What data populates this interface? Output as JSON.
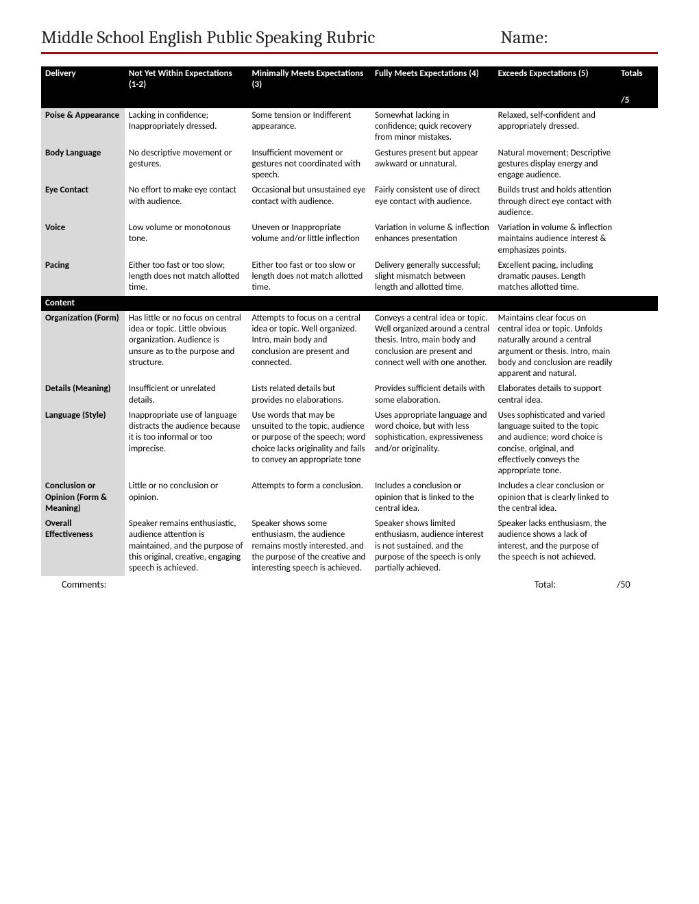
{
  "header": {
    "title": "Middle School English Public Speaking Rubric",
    "name_label": "Name:"
  },
  "columns": {
    "criteria": "Delivery",
    "level1": "Not Yet Within Expectations (1-2)",
    "level2": "Minimally Meets Expectations (3)",
    "level3": "Fully Meets Expectations (4)",
    "level4": "Exceeds Expectations (5)",
    "totals": "Totals",
    "per5": "/5"
  },
  "sections": [
    {
      "header": null,
      "rows": [
        {
          "criteria": "Poise & Appearance",
          "l1": "Lacking in confidence; Inappropriately dressed.",
          "l2": "Some tension or Indifferent appearance.",
          "l3": "Somewhat lacking in confidence; quick recovery from minor mistakes.",
          "l4": "Relaxed, self-confident and appropriately dressed."
        },
        {
          "criteria": "Body Language",
          "l1": "No descriptive movement or gestures.",
          "l2": "Insufficient movement or gestures not coordinated with speech.",
          "l3": "Gestures present but appear awkward or unnatural.",
          "l4": "Natural movement; Descriptive gestures display energy and engage audience."
        },
        {
          "criteria": "Eye Contact",
          "l1": "No effort to make eye contact with audience.",
          "l2": "Occasional but unsustained eye contact with audience.",
          "l3": "Fairly consistent use of direct eye contact with audience.",
          "l4": "Builds trust and holds attention through direct eye contact with audience."
        },
        {
          "criteria": "Voice",
          "l1": "Low volume or monotonous tone.",
          "l2": "Uneven or Inappropriate volume and/or little inflection",
          "l3": "Variation in volume & inflection enhances presentation",
          "l4": "Variation in volume & inflection maintains audience interest & emphasizes points."
        },
        {
          "criteria": "Pacing",
          "l1": "Either too fast or too slow; length does not match allotted time.",
          "l2": "Either too fast or too slow or length does not match allotted time.",
          "l3": "Delivery generally successful; slight mismatch between length and allotted time.",
          "l4": "Excellent pacing, including dramatic pauses. Length matches allotted time."
        }
      ]
    },
    {
      "header": "Content",
      "rows": [
        {
          "criteria": "Organization (Form)",
          "l1": "Has little or no focus on central idea or topic. Little obvious organization. Audience is unsure as to the purpose and structure.",
          "l2": "Attempts to focus on a central idea or topic. Well organized.  Intro, main body and conclusion are present and connected.",
          "l3": "Conveys a central idea or topic. Well organized around a central thesis. Intro, main body and conclusion are present and connect well with one another.",
          "l4": "Maintains clear focus on central idea or topic. Unfolds naturally around a central argument or thesis. Intro, main body and conclusion are readily apparent and natural."
        },
        {
          "criteria": "Details (Meaning)",
          "l1": "Insufficient or unrelated details.",
          "l2": "Lists related details but provides no elaborations.",
          "l3": "Provides sufficient details with some elaboration.",
          "l4": "Elaborates details to support central idea."
        },
        {
          "criteria": "Language (Style)",
          "l1": "Inappropriate use of language distracts the audience because it is too informal or too imprecise.",
          "l2": "Use words that may be unsuited to the topic, audience or purpose of the speech; word choice lacks originality and fails to convey an appropriate tone",
          "l3": "Uses appropriate language and word choice, but with less sophistication, expressiveness and/or originality.",
          "l4": "Uses sophisticated and varied language suited to the topic and audience; word choice is concise, original, and effectively conveys the appropriate tone."
        },
        {
          "criteria": "Conclusion or Opinion (Form & Meaning)",
          "l1": "Little or no conclusion or opinion.",
          "l2": "Attempts to form a conclusion.",
          "l3": "Includes a conclusion or opinion that is linked to the central idea.",
          "l4": "Includes a clear conclusion or opinion that is clearly linked to the central idea."
        },
        {
          "criteria": "Overall Effectiveness",
          "l1": "Speaker remains enthusiastic, audience attention is maintained, and the purpose of this original, creative, engaging speech is achieved.",
          "l2": "Speaker shows some enthusiasm, the audience remains mostly interested, and the purpose of the creative and interesting speech is achieved.",
          "l3": "Speaker shows limited enthusiasm, audience interest is not sustained, and the purpose of the speech is only partially achieved.",
          "l4": "Speaker lacks enthusiasm, the audience shows a lack of interest, and the purpose of the speech is not achieved."
        }
      ]
    }
  ],
  "footer": {
    "comments": "Comments:",
    "total_label": "Total:",
    "total_max": "/50"
  }
}
